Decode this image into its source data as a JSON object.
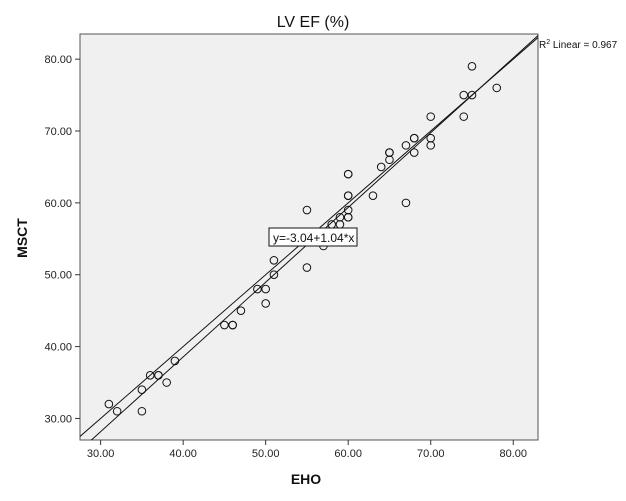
{
  "chart_data": {
    "type": "scatter",
    "title": "LV EF (%)",
    "xlabel": "EHO",
    "ylabel": "MSCT",
    "xlim": [
      27.5,
      83
    ],
    "ylim": [
      27,
      83.5
    ],
    "x_ticks": [
      "30.00",
      "40.00",
      "50.00",
      "60.00",
      "70.00",
      "80.00"
    ],
    "y_ticks": [
      "30.00",
      "40.00",
      "50.00",
      "60.00",
      "70.00",
      "80.00"
    ],
    "x_tick_values": [
      30,
      40,
      50,
      60,
      70,
      80
    ],
    "y_tick_values": [
      30,
      40,
      50,
      60,
      70,
      80
    ],
    "grid": false,
    "background_color": "#f0f0f0",
    "annotations": {
      "r2_prefix": "R",
      "r2_sup": "2",
      "r2_text": " Linear = 0.967",
      "equation": "y=-3.04+1.04*x"
    },
    "fit_line": {
      "intercept": -3.04,
      "slope": 1.04
    },
    "reference_line": {
      "intercept": 0,
      "slope": 1
    },
    "points": [
      [
        31,
        32
      ],
      [
        32,
        31
      ],
      [
        35,
        31
      ],
      [
        35,
        34
      ],
      [
        36,
        36
      ],
      [
        37,
        36
      ],
      [
        37,
        36
      ],
      [
        38,
        35
      ],
      [
        39,
        38
      ],
      [
        45,
        43
      ],
      [
        46,
        43
      ],
      [
        46,
        43
      ],
      [
        47,
        45
      ],
      [
        49,
        48
      ],
      [
        50,
        48
      ],
      [
        50,
        46
      ],
      [
        51,
        52
      ],
      [
        51,
        50
      ],
      [
        55,
        59
      ],
      [
        55,
        51
      ],
      [
        57,
        54
      ],
      [
        58,
        57
      ],
      [
        59,
        58
      ],
      [
        59,
        57
      ],
      [
        60,
        58
      ],
      [
        60,
        58
      ],
      [
        60,
        59
      ],
      [
        60,
        61
      ],
      [
        60,
        61
      ],
      [
        60,
        64
      ],
      [
        60,
        64
      ],
      [
        63,
        61
      ],
      [
        64,
        65
      ],
      [
        65,
        66
      ],
      [
        65,
        67
      ],
      [
        65,
        67
      ],
      [
        67,
        68
      ],
      [
        67,
        60
      ],
      [
        68,
        69
      ],
      [
        68,
        69
      ],
      [
        68,
        67
      ],
      [
        70,
        72
      ],
      [
        70,
        69
      ],
      [
        70,
        68
      ],
      [
        74,
        75
      ],
      [
        74,
        72
      ],
      [
        75,
        79
      ],
      [
        75,
        75
      ],
      [
        78,
        76
      ]
    ]
  }
}
